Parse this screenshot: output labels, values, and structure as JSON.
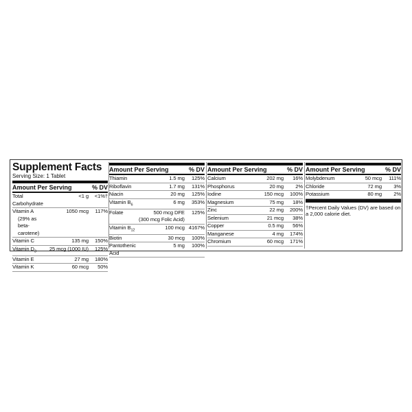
{
  "title": "Supplement Facts",
  "serving_size": "Serving Size: 1 Tablet",
  "header": {
    "amount": "Amount Per Serving",
    "dv": "% DV"
  },
  "panel1": [
    {
      "name": "Total Carbohydrate",
      "amount": "<1 g",
      "dv": "<1%†"
    },
    {
      "name": "Vitamin A",
      "amount": "1050 mcg",
      "dv": "117%",
      "note": "(29% as beta-carotene)"
    },
    {
      "name": "Vitamin C",
      "amount": "135 mg",
      "dv": "150%"
    },
    {
      "name": "Vitamin D",
      "subscript": "3",
      "amount": "25 mcg (1000 IU)",
      "dv": "125%"
    },
    {
      "name": "Vitamin E",
      "amount": "27 mg",
      "dv": "180%"
    },
    {
      "name": "Vitamin K",
      "amount": "60 mcg",
      "dv": "50%"
    }
  ],
  "panel2": [
    {
      "name": "Thiamin",
      "amount": "1.5 mg",
      "dv": "125%"
    },
    {
      "name": "Riboflavin",
      "amount": "1.7 mg",
      "dv": "131%"
    },
    {
      "name": "Niacin",
      "amount": "20 mg",
      "dv": "125%"
    },
    {
      "name": "Vitamin B",
      "subscript": "6",
      "amount": "6 mg",
      "dv": "353%"
    },
    {
      "name": "Folate",
      "amount": "500 mcg DFE",
      "dv": "125%",
      "note": "(300 mcg Folic Acid)"
    },
    {
      "name": "Vitamin B",
      "subscript": "12",
      "amount": "100 mcg",
      "dv": "4167%"
    },
    {
      "name": "Biotin",
      "amount": "30 mcg",
      "dv": "100%"
    },
    {
      "name": "Pantothenic Acid",
      "amount": "5 mg",
      "dv": "100%"
    }
  ],
  "panel3": [
    {
      "name": "Calcium",
      "amount": "202 mg",
      "dv": "16%"
    },
    {
      "name": "Phosphorus",
      "amount": "20 mg",
      "dv": "2%"
    },
    {
      "name": "Iodine",
      "amount": "150 mcg",
      "dv": "100%"
    },
    {
      "name": "Magnesium",
      "amount": "75 mg",
      "dv": "18%"
    },
    {
      "name": "Zinc",
      "amount": "22 mg",
      "dv": "200%"
    },
    {
      "name": "Selenium",
      "amount": "21 mcg",
      "dv": "38%"
    },
    {
      "name": "Copper",
      "amount": "0.5 mg",
      "dv": "56%"
    },
    {
      "name": "Manganese",
      "amount": "4 mg",
      "dv": "174%"
    },
    {
      "name": "Chromium",
      "amount": "60 mcg",
      "dv": "171%"
    }
  ],
  "panel4": [
    {
      "name": "Molybdenum",
      "amount": "50 mcg",
      "dv": "111%"
    },
    {
      "name": "Chloride",
      "amount": "72 mg",
      "dv": "3%"
    },
    {
      "name": "Potassium",
      "amount": "80 mg",
      "dv": "2%"
    }
  ],
  "footnote": "†Percent Daily Values (DV) are based on a 2,000 calorie diet."
}
